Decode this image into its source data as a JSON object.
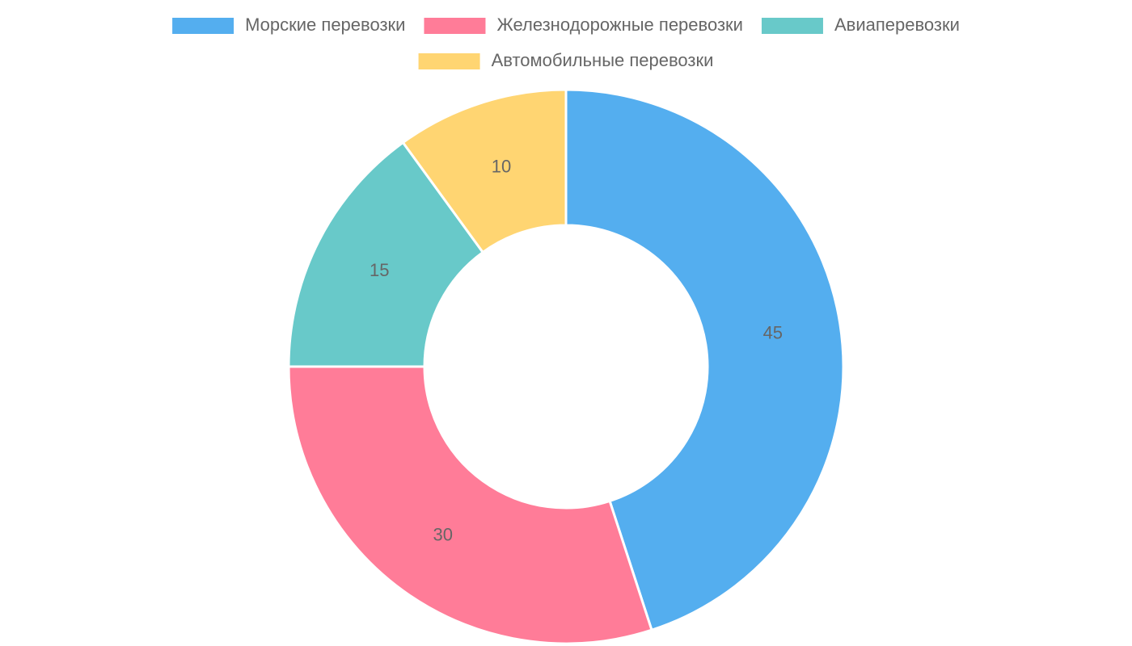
{
  "chart_data": {
    "type": "doughnut",
    "categories": [
      "Морские перевозки",
      "Железнодорожные перевозки",
      "Авиаперевозки",
      "Автомобильные перевозки"
    ],
    "values": [
      45,
      30,
      15,
      10
    ],
    "colors": [
      "#54aeef",
      "#ff7c98",
      "#68c9c9",
      "#ffd572"
    ],
    "legend": "top"
  }
}
